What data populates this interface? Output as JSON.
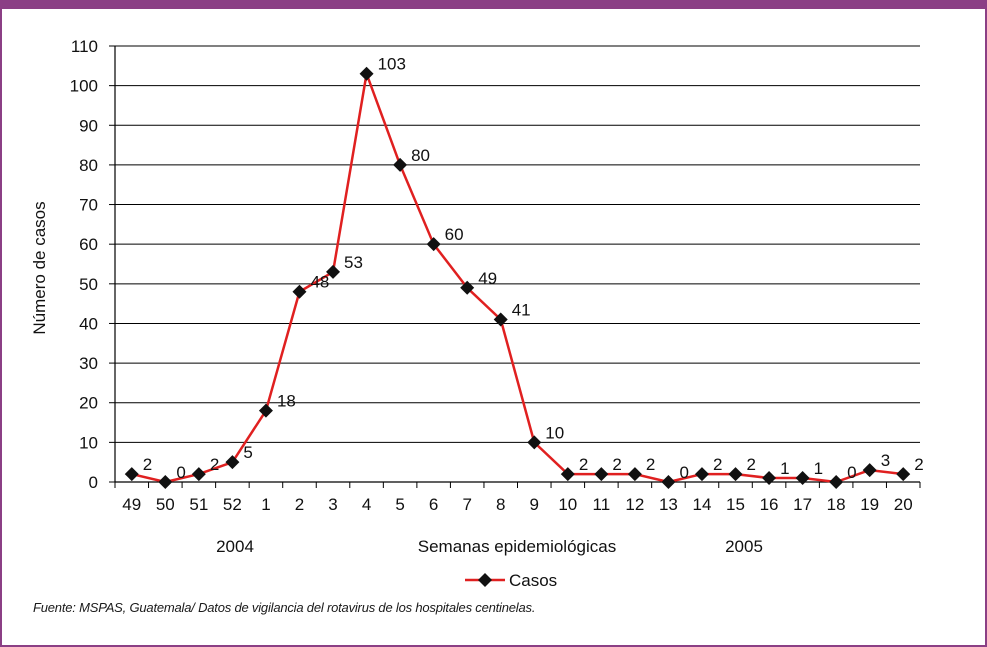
{
  "chart_data": {
    "type": "line",
    "xlabel": "Semanas epidemiológicas",
    "ylabel": "Número de casos",
    "ylim": [
      0,
      110
    ],
    "yticks": [
      0,
      10,
      20,
      30,
      40,
      50,
      60,
      70,
      80,
      90,
      100,
      110
    ],
    "categories": [
      "49",
      "50",
      "51",
      "52",
      "1",
      "2",
      "3",
      "4",
      "5",
      "6",
      "7",
      "8",
      "9",
      "10",
      "11",
      "12",
      "13",
      "14",
      "15",
      "16",
      "17",
      "18",
      "19",
      "20"
    ],
    "year_labels": [
      "2004",
      "2005"
    ],
    "series": [
      {
        "name": "Casos",
        "color": "#e02020",
        "values": [
          2,
          0,
          2,
          5,
          18,
          48,
          53,
          103,
          80,
          60,
          49,
          41,
          10,
          2,
          2,
          2,
          0,
          2,
          2,
          1,
          1,
          0,
          3,
          2
        ]
      }
    ],
    "data_labels": [
      "2",
      "0",
      "2",
      "5",
      "18",
      "48",
      "53",
      "103",
      "80",
      "60",
      "49",
      "41",
      "10",
      "2",
      "2",
      "2",
      "0",
      "2",
      "2",
      "1",
      "1",
      "0",
      "3",
      "2"
    ],
    "grid": true,
    "legend": "bottom"
  },
  "source_note": "Fuente: MSPAS, Guatemala/ Datos de vigilancia del rotavirus de los hospitales centinelas."
}
